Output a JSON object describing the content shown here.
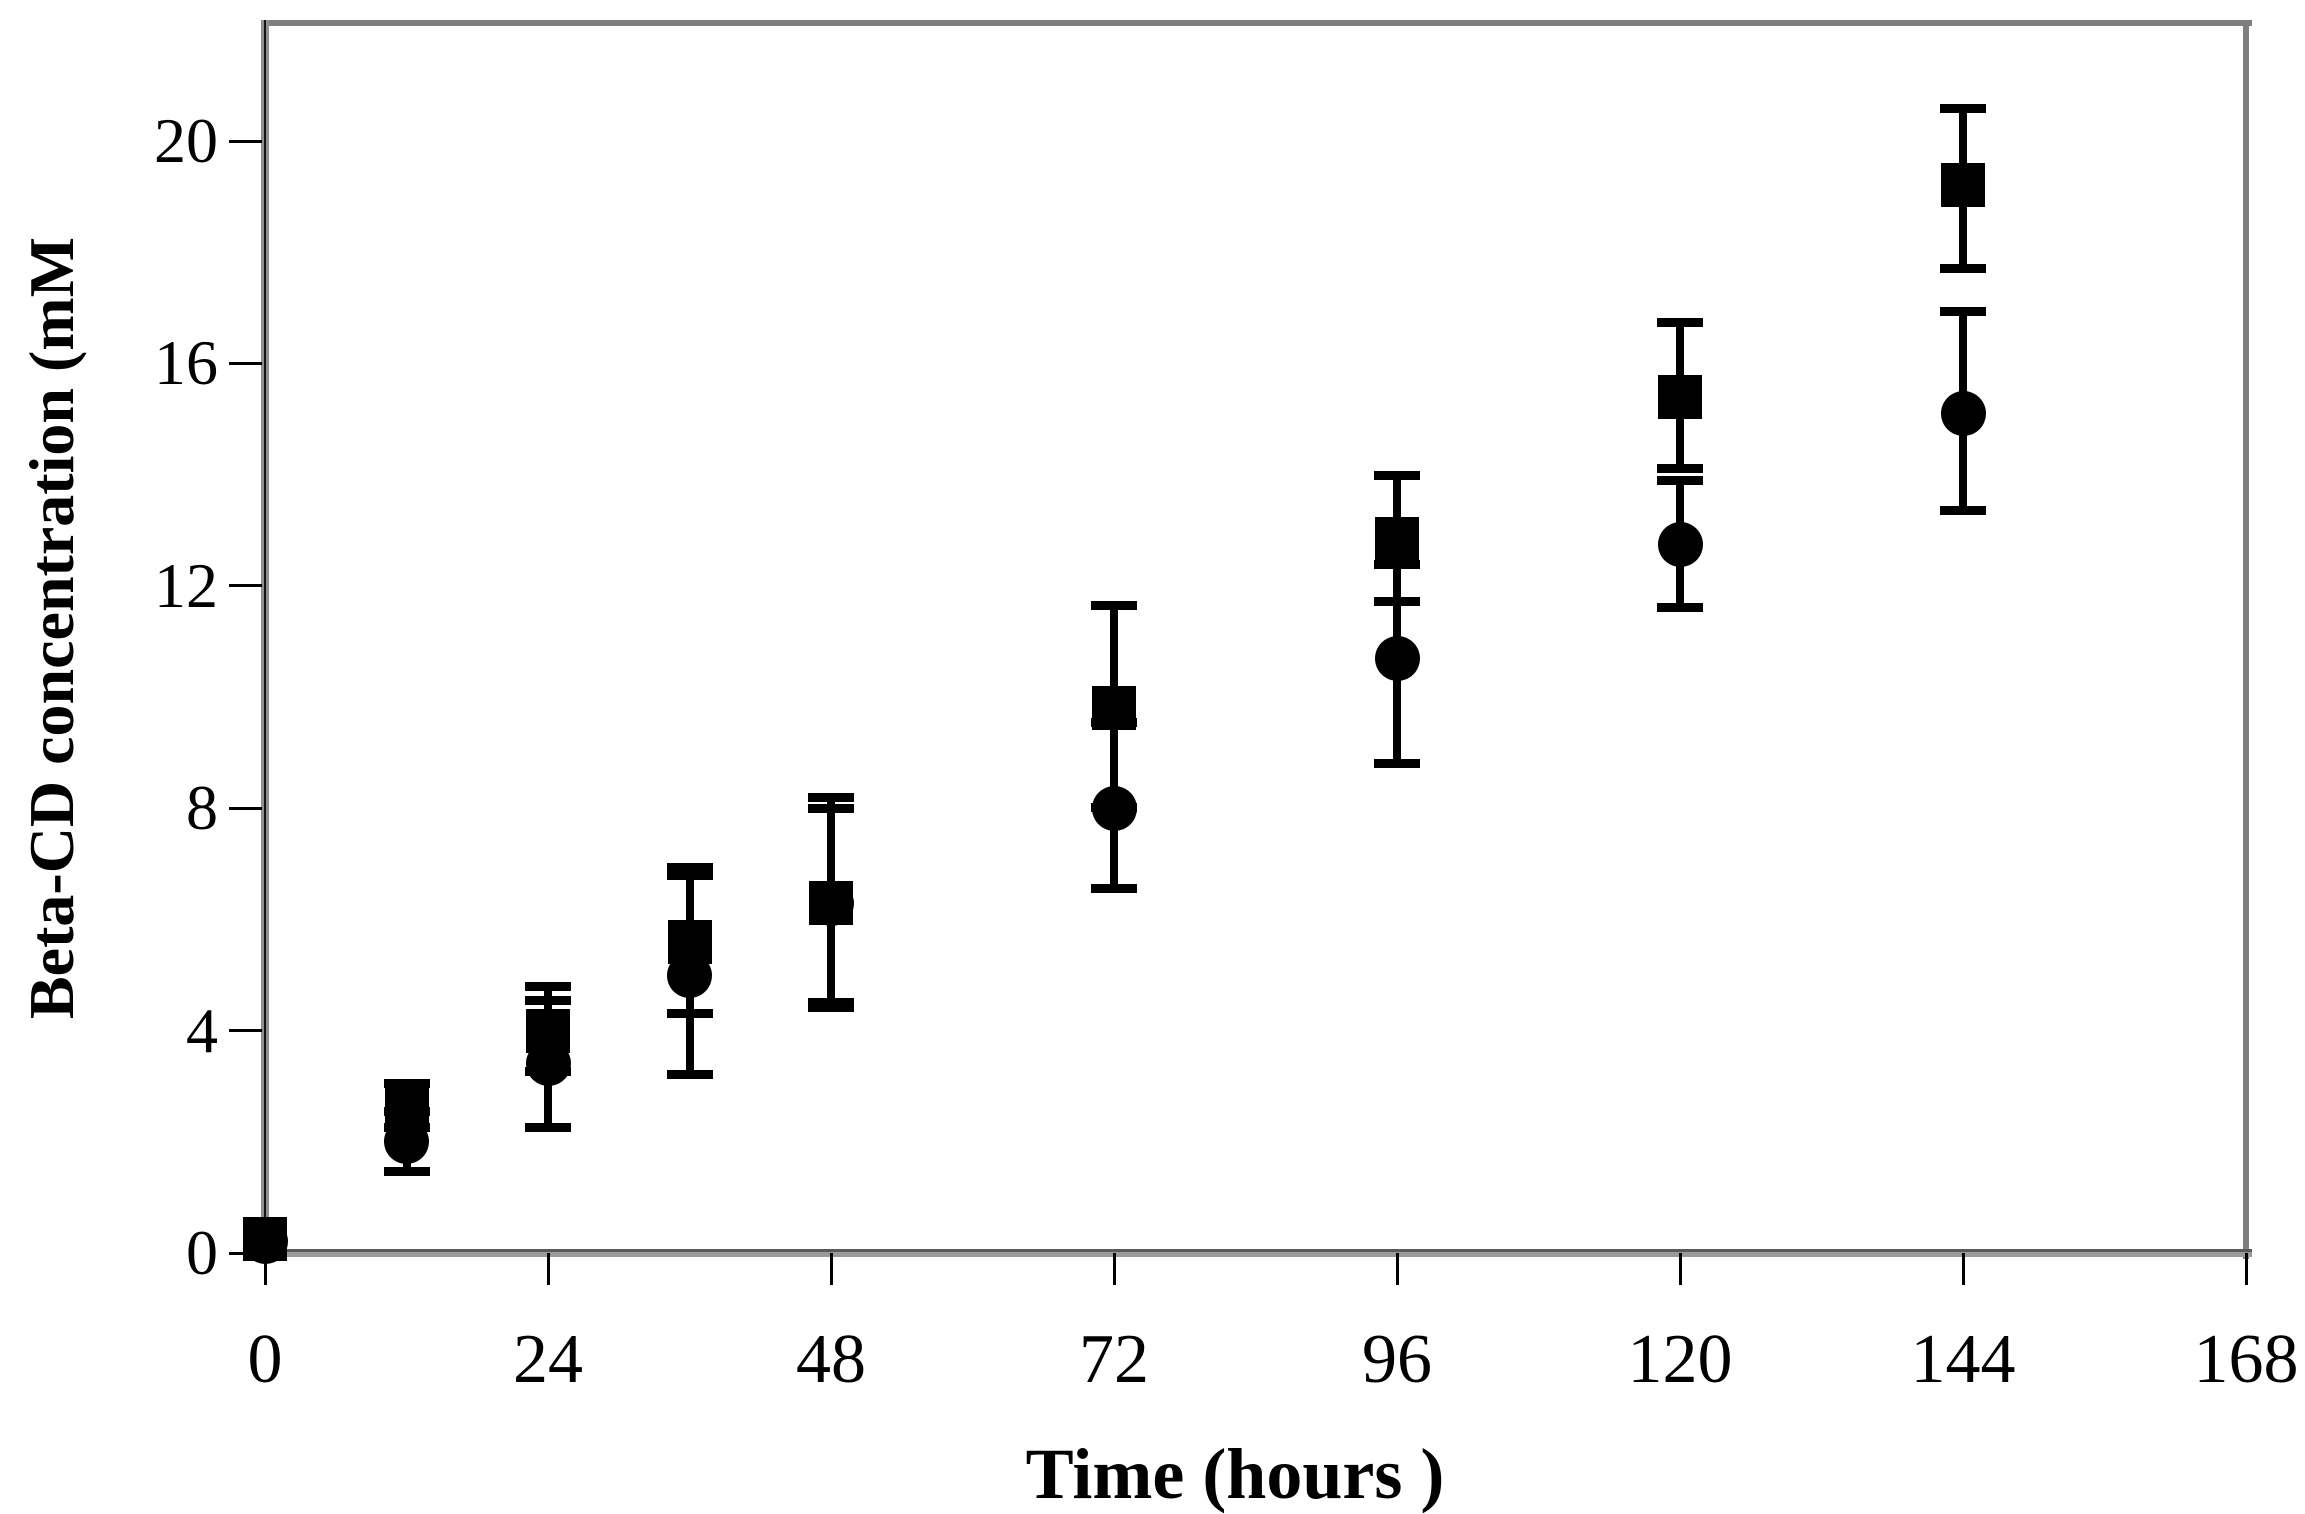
{
  "figure": {
    "x_axis_title": "Time (hours )",
    "y_axis_title": "Beta-CD concentration (mM"
  },
  "chart_data": {
    "type": "scatter",
    "title": "",
    "xlabel": "Time (hours )",
    "ylabel": "Beta-CD concentration (mM",
    "xlim": [
      0,
      168
    ],
    "ylim": [
      0,
      22.2
    ],
    "grid": false,
    "legend": "none",
    "x_tick_labels": [
      "0",
      "24",
      "48",
      "72",
      "96",
      "120",
      "144",
      "168"
    ],
    "x_tick_values": [
      0,
      24,
      48,
      72,
      96,
      120,
      144,
      168
    ],
    "y_tick_labels": [
      "0",
      "4",
      "8",
      "12",
      "16",
      "20"
    ],
    "y_tick_values": [
      0,
      4,
      8,
      12,
      16,
      20
    ],
    "marker_color": "#000000",
    "border_color": "#7f7f7f",
    "series": [
      {
        "name": "circle-series",
        "marker": "circle",
        "x": [
          0,
          12,
          24,
          36,
          48,
          72,
          96,
          120,
          144
        ],
        "y": [
          0.2,
          2.0,
          3.4,
          5.0,
          6.28,
          8.0,
          10.7,
          12.75,
          15.1
        ],
        "err_lo": [
          0,
          0.55,
          1.15,
          1.8,
          1.78,
          1.45,
          1.9,
          1.15,
          1.75
        ],
        "err_hi": [
          0,
          0.55,
          1.15,
          1.8,
          1.72,
          1.55,
          1.7,
          1.15,
          1.85
        ]
      },
      {
        "name": "square-series",
        "marker": "square",
        "x": [
          0,
          12,
          24,
          36,
          48,
          72,
          96,
          120,
          144
        ],
        "y": [
          0.25,
          2.6,
          4.0,
          5.6,
          6.3,
          9.8,
          12.85,
          15.4,
          19.2
        ],
        "err_lo": [
          0,
          0.35,
          0.75,
          1.3,
          1.9,
          1.8,
          1.15,
          1.3,
          1.5
        ],
        "err_hi": [
          0,
          0.45,
          0.8,
          1.35,
          1.9,
          1.85,
          1.15,
          1.35,
          1.4
        ]
      }
    ]
  }
}
